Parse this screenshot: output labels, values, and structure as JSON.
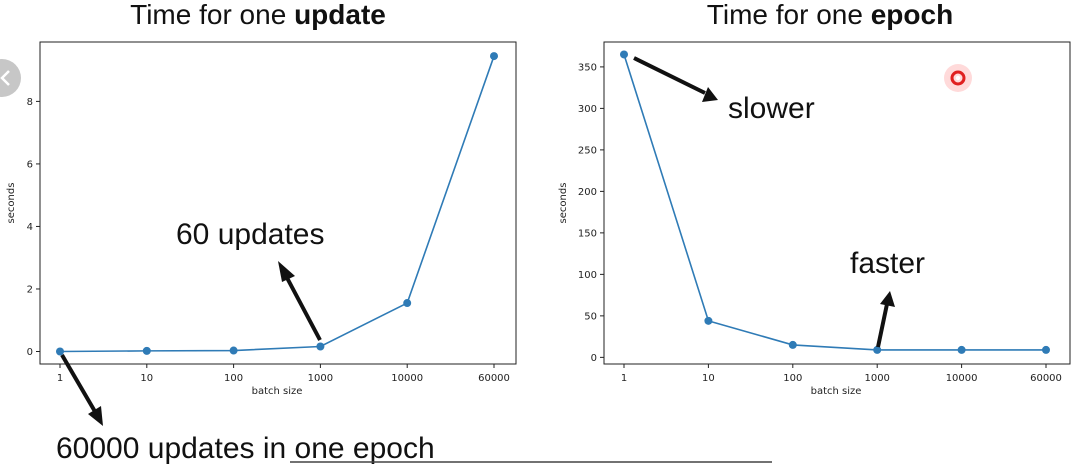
{
  "chart_data": [
    {
      "type": "line",
      "title_prefix": "Time for one ",
      "title_bold": "update",
      "xlabel": "batch size",
      "ylabel": "seconds",
      "categories": [
        "1",
        "10",
        "100",
        "1000",
        "10000",
        "60000"
      ],
      "values": [
        0.0,
        0.02,
        0.03,
        0.16,
        1.55,
        9.45
      ],
      "ylim": [
        -0.4,
        9.9
      ],
      "yticks": [
        "0",
        "2",
        "4",
        "6",
        "8"
      ],
      "annotations": {
        "callout": "60 updates"
      },
      "color": "#2f7bb6"
    },
    {
      "type": "line",
      "title_prefix": "Time for one ",
      "title_bold": "epoch",
      "xlabel": "batch size",
      "ylabel": "seconds",
      "categories": [
        "1",
        "10",
        "100",
        "1000",
        "10000",
        "60000"
      ],
      "values": [
        365,
        44,
        15,
        9,
        9,
        9
      ],
      "ylim": [
        -8,
        380
      ],
      "yticks": [
        "0",
        "50",
        "100",
        "150",
        "200",
        "250",
        "300",
        "350"
      ],
      "annotations": {
        "slower": "slower",
        "faster": "faster"
      },
      "color": "#2f7bb6"
    }
  ],
  "footer_text": "60000 updates in one epoch",
  "nav": {
    "icon": "chevron-left-icon"
  },
  "colors": {
    "line": "#2f7bb6",
    "pointer": "#e02020",
    "axis": "#222222"
  }
}
